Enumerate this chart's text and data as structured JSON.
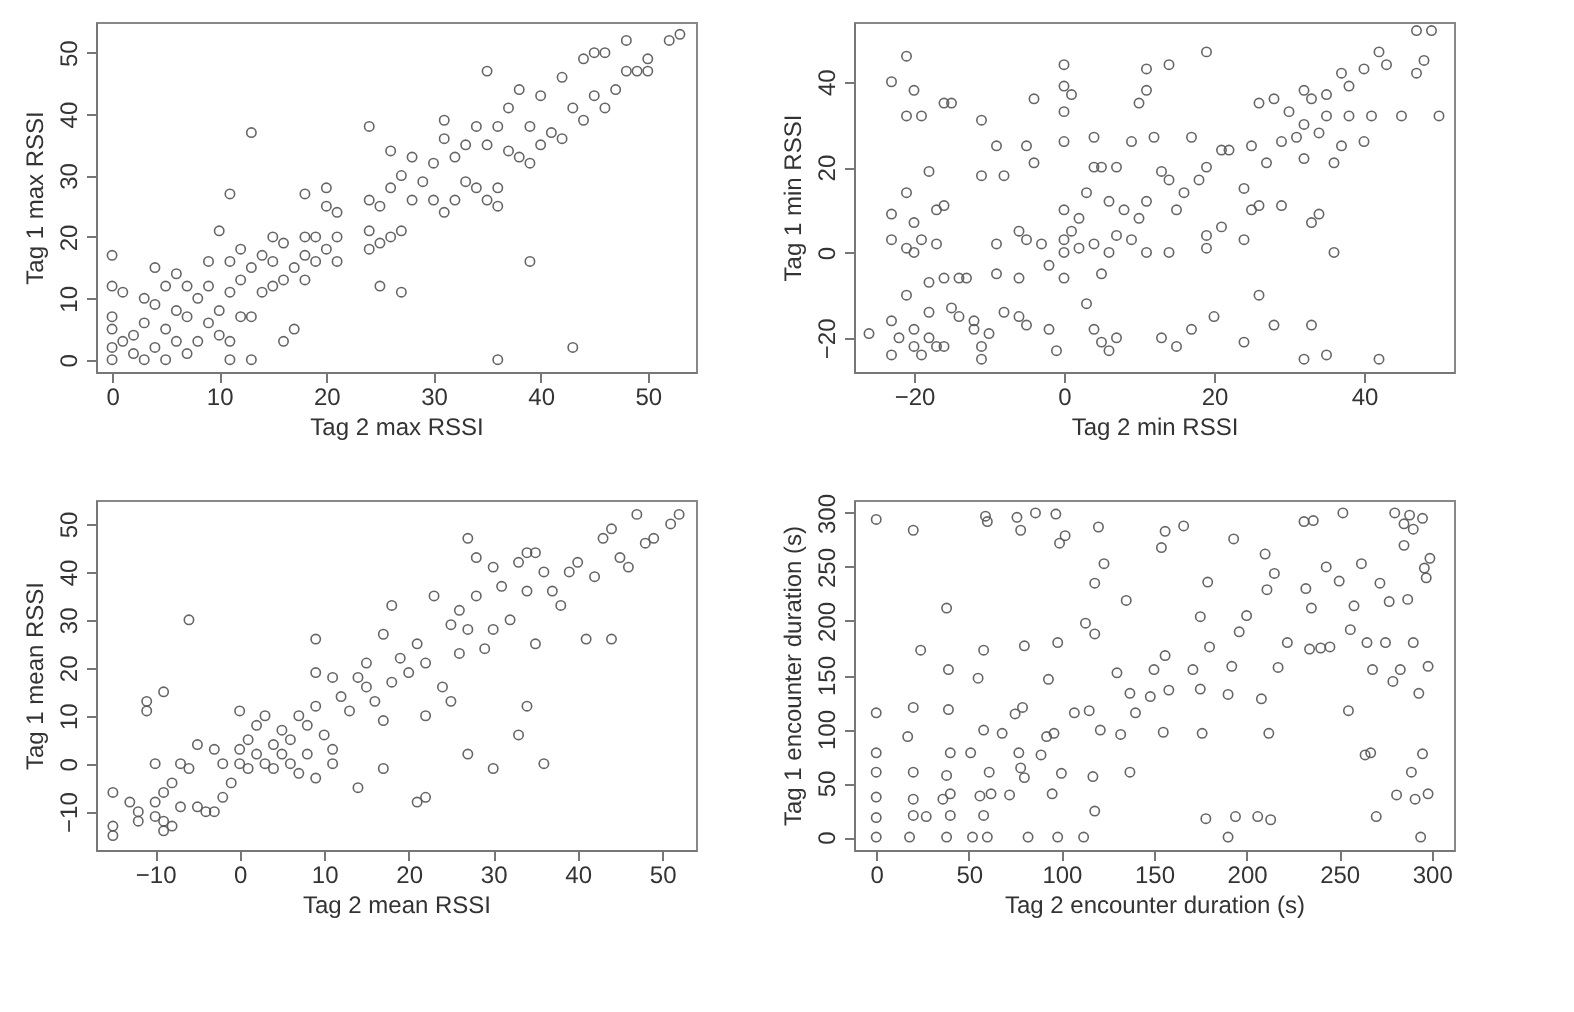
{
  "chart_data": [
    {
      "type": "scatter",
      "xlabel": "Tag 2 max RSSI",
      "ylabel": "Tag 1 max RSSI",
      "xlim": [
        -1.5,
        54.5
      ],
      "ylim": [
        -2,
        55
      ],
      "xticks": [
        0,
        10,
        20,
        30,
        40,
        50
      ],
      "yticks": [
        0,
        10,
        20,
        30,
        40,
        50
      ],
      "marker": "circle",
      "series": [
        {
          "color": "#555555",
          "x": [
            0,
            0,
            0,
            0,
            0,
            0,
            1,
            1,
            2,
            2,
            3,
            3,
            3,
            4,
            4,
            4,
            5,
            5,
            5,
            6,
            6,
            6,
            7,
            7,
            7,
            8,
            8,
            9,
            9,
            9,
            10,
            10,
            10,
            11,
            11,
            11,
            11,
            11,
            12,
            12,
            12,
            13,
            13,
            13,
            13,
            14,
            14,
            15,
            15,
            15,
            16,
            16,
            16,
            17,
            17,
            18,
            18,
            18,
            18,
            19,
            19,
            20,
            20,
            20,
            21,
            21,
            21,
            24,
            24,
            24,
            24,
            25,
            25,
            25,
            26,
            26,
            26,
            27,
            27,
            27,
            28,
            28,
            29,
            30,
            30,
            31,
            31,
            31,
            32,
            32,
            33,
            33,
            34,
            34,
            35,
            35,
            35,
            36,
            36,
            36,
            36,
            37,
            37,
            38,
            38,
            39,
            39,
            39,
            40,
            40,
            41,
            42,
            42,
            43,
            43,
            44,
            44,
            45,
            45,
            46,
            46,
            47,
            48,
            48,
            49,
            50,
            50,
            52,
            53
          ],
          "values": [
            0,
            2,
            5,
            7,
            12,
            17,
            3,
            11,
            1,
            4,
            0,
            6,
            10,
            2,
            9,
            15,
            0,
            5,
            12,
            3,
            8,
            14,
            1,
            7,
            12,
            3,
            10,
            6,
            12,
            16,
            4,
            8,
            21,
            0,
            3,
            11,
            16,
            27,
            7,
            13,
            18,
            0,
            7,
            15,
            37,
            11,
            17,
            12,
            16,
            20,
            3,
            13,
            19,
            5,
            15,
            13,
            17,
            20,
            27,
            16,
            20,
            18,
            25,
            28,
            16,
            20,
            24,
            18,
            21,
            26,
            38,
            12,
            19,
            25,
            20,
            28,
            34,
            11,
            21,
            30,
            26,
            33,
            29,
            26,
            32,
            24,
            36,
            39,
            26,
            33,
            29,
            35,
            28,
            38,
            26,
            35,
            47,
            0,
            25,
            28,
            38,
            34,
            41,
            33,
            44,
            16,
            32,
            38,
            35,
            43,
            37,
            36,
            46,
            2,
            41,
            39,
            49,
            43,
            50,
            41,
            50,
            44,
            47,
            52,
            47,
            47,
            49,
            52,
            53
          ]
        }
      ]
    },
    {
      "type": "scatter",
      "xlabel": "Tag 2 min RSSI",
      "ylabel": "Tag 1 min RSSI",
      "xlim": [
        -28,
        52
      ],
      "ylim": [
        -28,
        54
      ],
      "xticks": [
        -20,
        0,
        20,
        40
      ],
      "yticks": [
        -20,
        0,
        20,
        40
      ],
      "marker": "circle",
      "series": [
        {
          "color": "#555555",
          "x": [
            -26,
            -23,
            -23,
            -23,
            -23,
            -23,
            -22,
            -21,
            -21,
            -21,
            -21,
            -21,
            -20,
            -20,
            -20,
            -20,
            -20,
            -19,
            -19,
            -19,
            -18,
            -18,
            -18,
            -18,
            -17,
            -17,
            -17,
            -16,
            -16,
            -16,
            -16,
            -15,
            -15,
            -14,
            -14,
            -13,
            -12,
            -12,
            -11,
            -11,
            -11,
            -11,
            -10,
            -9,
            -9,
            -9,
            -8,
            -8,
            -6,
            -6,
            -6,
            -5,
            -5,
            -5,
            -4,
            -4,
            -3,
            -2,
            -2,
            -1,
            0,
            0,
            0,
            0,
            0,
            0,
            0,
            0,
            1,
            1,
            2,
            2,
            3,
            3,
            4,
            4,
            4,
            4,
            5,
            5,
            5,
            6,
            6,
            6,
            7,
            7,
            7,
            8,
            9,
            9,
            10,
            10,
            11,
            11,
            11,
            11,
            12,
            13,
            13,
            14,
            14,
            14,
            15,
            15,
            16,
            17,
            17,
            18,
            19,
            19,
            19,
            19,
            20,
            21,
            21,
            22,
            24,
            24,
            24,
            25,
            25,
            26,
            26,
            26,
            27,
            28,
            28,
            29,
            29,
            30,
            31,
            32,
            32,
            32,
            32,
            33,
            33,
            33,
            34,
            34,
            35,
            35,
            35,
            36,
            36,
            37,
            37,
            38,
            38,
            40,
            40,
            41,
            42,
            42,
            43,
            45,
            47,
            47,
            48,
            49,
            50
          ],
          "values": [
            -19,
            40,
            9,
            3,
            -16,
            -24,
            -20,
            46,
            32,
            14,
            1,
            -10,
            38,
            7,
            0,
            -18,
            -22,
            32,
            3,
            -24,
            19,
            -7,
            -14,
            -20,
            10,
            2,
            -22,
            35,
            11,
            -6,
            -22,
            35,
            -13,
            -6,
            -15,
            -6,
            -16,
            -18,
            31,
            18,
            -25,
            -22,
            -19,
            25,
            2,
            -5,
            18,
            -14,
            5,
            -6,
            -15,
            25,
            3,
            -17,
            36,
            21,
            2,
            -3,
            -18,
            -23,
            44,
            39,
            33,
            26,
            10,
            3,
            0,
            -6,
            37,
            5,
            8,
            1,
            -12,
            14,
            27,
            20,
            2,
            -18,
            20,
            -5,
            -21,
            0,
            12,
            -23,
            20,
            -20,
            4,
            10,
            26,
            3,
            35,
            8,
            43,
            38,
            12,
            0,
            27,
            19,
            -20,
            44,
            17,
            0,
            10,
            -22,
            14,
            27,
            -18,
            17,
            47,
            20,
            1,
            4,
            -15,
            6,
            24,
            24,
            15,
            3,
            -21,
            25,
            10,
            -10,
            35,
            11,
            21,
            36,
            -17,
            11,
            26,
            33,
            27,
            38,
            30,
            22,
            -25,
            36,
            7,
            -17,
            28,
            9,
            37,
            32,
            -24,
            0,
            21,
            42,
            25,
            32,
            39,
            26,
            43,
            32,
            47,
            -25,
            44,
            32,
            52,
            42,
            45,
            52,
            32
          ]
        }
      ]
    },
    {
      "type": "scatter",
      "xlabel": "Tag 2 mean RSSI",
      "ylabel": "Tag 1 mean RSSI",
      "xlim": [
        -17,
        54
      ],
      "ylim": [
        -18,
        55
      ],
      "xticks": [
        -10,
        0,
        10,
        20,
        30,
        40,
        50
      ],
      "yticks": [
        -10,
        0,
        10,
        20,
        30,
        40,
        50
      ],
      "marker": "circle",
      "series": [
        {
          "color": "#555555",
          "x": [
            -15,
            -15,
            -15,
            -13,
            -12,
            -12,
            -11,
            -11,
            -10,
            -10,
            -10,
            -9,
            -9,
            -9,
            -9,
            -8,
            -8,
            -7,
            -7,
            -6,
            -6,
            -5,
            -5,
            -4,
            -3,
            -3,
            -2,
            -2,
            -1,
            0,
            0,
            0,
            1,
            1,
            2,
            2,
            3,
            3,
            4,
            4,
            5,
            5,
            6,
            6,
            7,
            7,
            8,
            8,
            9,
            9,
            9,
            9,
            10,
            11,
            11,
            11,
            12,
            13,
            14,
            14,
            15,
            15,
            16,
            17,
            17,
            17,
            18,
            18,
            19,
            20,
            21,
            21,
            22,
            22,
            22,
            23,
            24,
            25,
            25,
            26,
            26,
            27,
            27,
            27,
            28,
            28,
            29,
            30,
            30,
            30,
            31,
            32,
            33,
            33,
            34,
            34,
            34,
            35,
            35,
            36,
            36,
            37,
            38,
            39,
            40,
            41,
            42,
            43,
            44,
            44,
            45,
            46,
            47,
            48,
            49,
            51,
            52
          ],
          "values": [
            -6,
            -13,
            -15,
            -8,
            -10,
            -12,
            13,
            11,
            0,
            -8,
            -11,
            15,
            -6,
            -12,
            -14,
            -4,
            -13,
            0,
            -9,
            30,
            -1,
            4,
            -9,
            -10,
            3,
            -10,
            0,
            -7,
            -4,
            11,
            0,
            3,
            5,
            -1,
            2,
            8,
            0,
            10,
            4,
            -1,
            7,
            2,
            5,
            0,
            -2,
            10,
            8,
            2,
            26,
            19,
            -3,
            12,
            6,
            3,
            0,
            18,
            14,
            11,
            -5,
            18,
            16,
            21,
            13,
            27,
            -1,
            9,
            33,
            17,
            22,
            19,
            25,
            -8,
            -7,
            10,
            21,
            35,
            16,
            13,
            29,
            32,
            23,
            47,
            2,
            28,
            43,
            35,
            24,
            41,
            -1,
            28,
            37,
            30,
            42,
            6,
            44,
            12,
            36,
            44,
            25,
            0,
            40,
            36,
            33,
            40,
            42,
            26,
            39,
            47,
            26,
            49,
            43,
            41,
            52,
            46,
            47,
            50,
            52
          ]
        }
      ]
    },
    {
      "type": "scatter",
      "xlabel": "Tag 2 encounter duration (s)",
      "ylabel": "Tag 1 encounter duration (s)",
      "xlim": [
        -12,
        312
      ],
      "ylim": [
        -12,
        312
      ],
      "xticks": [
        0,
        50,
        100,
        150,
        200,
        250,
        300
      ],
      "yticks": [
        0,
        50,
        100,
        150,
        200,
        250,
        300
      ],
      "marker": "circle",
      "series": [
        {
          "color": "#555555",
          "x": [
            0,
            0,
            0,
            0,
            0,
            0,
            0,
            17,
            18,
            20,
            20,
            20,
            20,
            20,
            24,
            27,
            36,
            38,
            38,
            38,
            39,
            39,
            40,
            40,
            40,
            51,
            52,
            55,
            56,
            58,
            58,
            58,
            59,
            60,
            60,
            61,
            62,
            68,
            72,
            75,
            76,
            77,
            78,
            78,
            79,
            80,
            80,
            82,
            86,
            89,
            92,
            93,
            95,
            96,
            97,
            98,
            98,
            99,
            100,
            102,
            107,
            112,
            113,
            115,
            117,
            118,
            118,
            118,
            120,
            121,
            123,
            130,
            132,
            135,
            137,
            137,
            140,
            148,
            150,
            154,
            155,
            156,
            156,
            158,
            166,
            171,
            175,
            175,
            176,
            178,
            179,
            180,
            190,
            190,
            192,
            193,
            194,
            196,
            200,
            206,
            208,
            210,
            211,
            212,
            213,
            215,
            217,
            222,
            231,
            232,
            234,
            235,
            236,
            240,
            243,
            245,
            250,
            252,
            255,
            256,
            258,
            262,
            264,
            265,
            267,
            268,
            270,
            272,
            275,
            277,
            279,
            280,
            281,
            283,
            285,
            287,
            289,
            290,
            291,
            293,
            294,
            295,
            295,
            296,
            297,
            298,
            298,
            299,
            290,
            288,
            285
          ],
          "values": [
            0,
            18,
            37,
            60,
            78,
            115,
            294,
            93,
            0,
            20,
            35,
            60,
            120,
            284,
            173,
            19,
            35,
            0,
            57,
            212,
            155,
            118,
            40,
            78,
            20,
            78,
            0,
            147,
            38,
            20,
            173,
            99,
            297,
            292,
            0,
            60,
            40,
            96,
            39,
            114,
            296,
            78,
            64,
            284,
            120,
            177,
            55,
            0,
            300,
            76,
            93,
            146,
            40,
            96,
            299,
            180,
            0,
            272,
            59,
            279,
            115,
            0,
            198,
            117,
            56,
            188,
            235,
            24,
            287,
            99,
            253,
            152,
            95,
            219,
            60,
            133,
            115,
            130,
            155,
            268,
            97,
            283,
            168,
            136,
            288,
            155,
            204,
            137,
            96,
            17,
            236,
            176,
            0,
            132,
            158,
            276,
            19,
            190,
            205,
            19,
            128,
            262,
            229,
            96,
            16,
            244,
            157,
            180,
            292,
            230,
            174,
            212,
            293,
            175,
            250,
            176,
            237,
            300,
            117,
            192,
            214,
            253,
            76,
            180,
            78,
            155,
            19,
            235,
            180,
            218,
            144,
            300,
            39,
            155,
            290,
            220,
            60,
            180,
            35,
            133,
            0,
            295,
            77,
            249,
            240,
            40,
            158,
            258,
            285,
            298,
            270
          ]
        }
      ]
    }
  ]
}
